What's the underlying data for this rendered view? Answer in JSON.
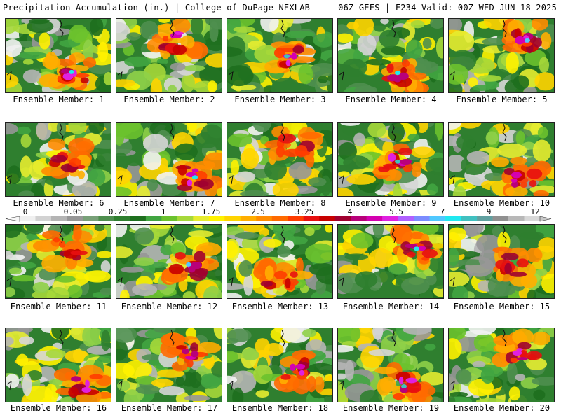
{
  "header": {
    "title": "Precipitation Accumulation (in.) | College of DuPage NEXLAB",
    "run_info": "06Z GEFS | F234 Valid: 00Z WED JUN 18 2025"
  },
  "colorbar": {
    "tick_labels": [
      "0",
      "0.05",
      "0.25",
      "1",
      "1.75",
      "2.5",
      "3.25",
      "4",
      "5.5",
      "7",
      "9",
      "12"
    ],
    "colors": [
      "#f0f0f0",
      "#d2d2d2",
      "#b4b4b4",
      "#969696",
      "#78a078",
      "#4f8f4f",
      "#2f7f2f",
      "#1e6f1e",
      "#41a541",
      "#6bc22e",
      "#a6d83a",
      "#e6ec30",
      "#fff200",
      "#ffd400",
      "#ffae00",
      "#ff8c00",
      "#ff6a00",
      "#ff3c00",
      "#e81010",
      "#c80000",
      "#a00030",
      "#b8007a",
      "#d400b0",
      "#e020e0",
      "#b060ff",
      "#7b8cff",
      "#50c8ff",
      "#20e8f0",
      "#40c0c0",
      "#60a0a0",
      "#909090",
      "#b8b8b8",
      "#d8d8d8"
    ]
  },
  "members": [
    {
      "label": "Ensemble Member: 1"
    },
    {
      "label": "Ensemble Member: 2"
    },
    {
      "label": "Ensemble Member: 3"
    },
    {
      "label": "Ensemble Member: 4"
    },
    {
      "label": "Ensemble Member: 5"
    },
    {
      "label": "Ensemble Member: 6"
    },
    {
      "label": "Ensemble Member: 7"
    },
    {
      "label": "Ensemble Member: 8"
    },
    {
      "label": "Ensemble Member: 9"
    },
    {
      "label": "Ensemble Member: 10"
    },
    {
      "label": "Ensemble Member: 11"
    },
    {
      "label": "Ensemble Member: 12"
    },
    {
      "label": "Ensemble Member: 13"
    },
    {
      "label": "Ensemble Member: 14"
    },
    {
      "label": "Ensemble Member: 15"
    },
    {
      "label": "Ensemble Member: 16"
    },
    {
      "label": "Ensemble Member: 17"
    },
    {
      "label": "Ensemble Member: 18"
    },
    {
      "label": "Ensemble Member: 19"
    },
    {
      "label": "Ensemble Member: 20"
    }
  ]
}
